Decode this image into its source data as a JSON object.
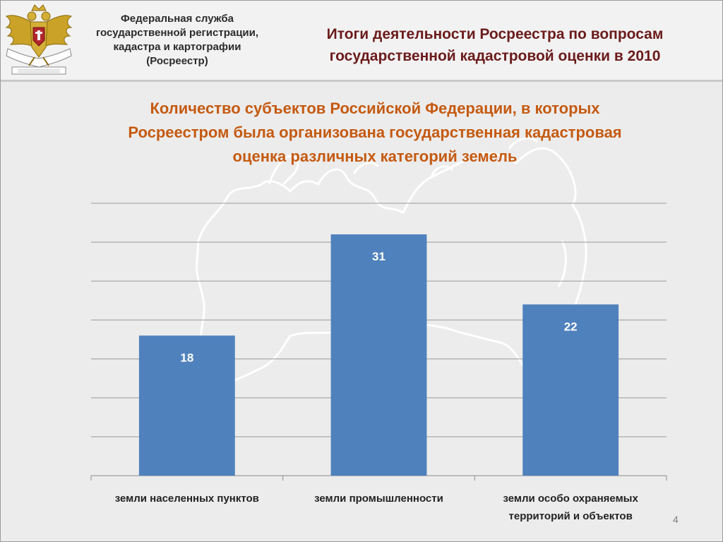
{
  "header": {
    "agency_lines": [
      "Федеральная служба",
      "государственной регистрации,",
      "кадастра и картографии",
      "(Росреестр)"
    ],
    "title_lines": [
      "Итоги деятельности Росреестра по вопросам",
      "государственной кадастровой оценки в 2010"
    ]
  },
  "chart_heading_lines": [
    "Количество субъектов Российской Федерации, в которых",
    "Росреестром была организована государственная кадастровая",
    "оценка различных категорий земель"
  ],
  "chart_data": {
    "type": "bar",
    "categories": [
      [
        "земли населенных пунктов"
      ],
      [
        "земли промышленности"
      ],
      [
        "земли особо охраняемых",
        "территорий и объектов"
      ]
    ],
    "values": [
      18,
      31,
      22
    ],
    "data_labels": [
      "18",
      "31",
      "22"
    ],
    "ylim": [
      0,
      35
    ],
    "y_step": 5,
    "grid": true,
    "legend": "none",
    "bar_color": "#4f81bd"
  },
  "page_number": "4",
  "icons": {
    "emblem": "double-headed-eagle-emblem-icon",
    "background": "russia-map-outline"
  },
  "colors": {
    "title": "#6b1b1b",
    "heading": "#c55a11",
    "bar": "#4f81bd"
  }
}
